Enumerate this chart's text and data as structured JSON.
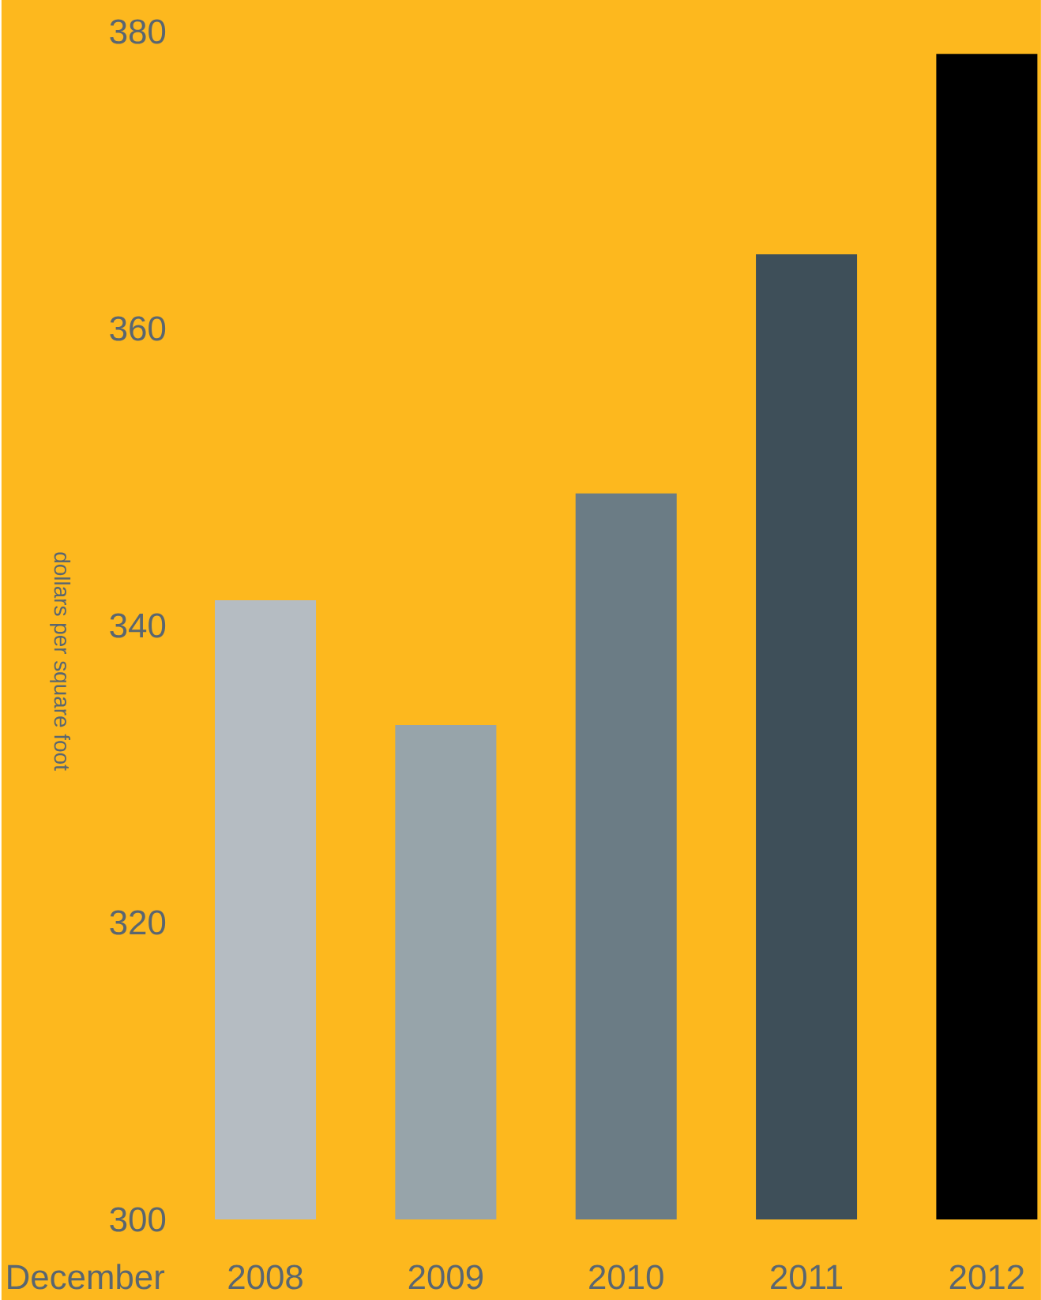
{
  "chart_data": {
    "type": "bar",
    "xlabel": "December",
    "ylabel": "dollars per square foot",
    "categories": [
      "2008",
      "2009",
      "2010",
      "2011",
      "2012"
    ],
    "values": [
      341.7,
      333.3,
      348.9,
      365,
      378.5
    ],
    "colors": [
      "#b5bcc2",
      "#97a4aa",
      "#6b7c85",
      "#3e4f59",
      "#000000"
    ],
    "ylim": [
      300,
      380
    ],
    "yticks": [
      300,
      320,
      340,
      360,
      380
    ],
    "grid": false
  }
}
